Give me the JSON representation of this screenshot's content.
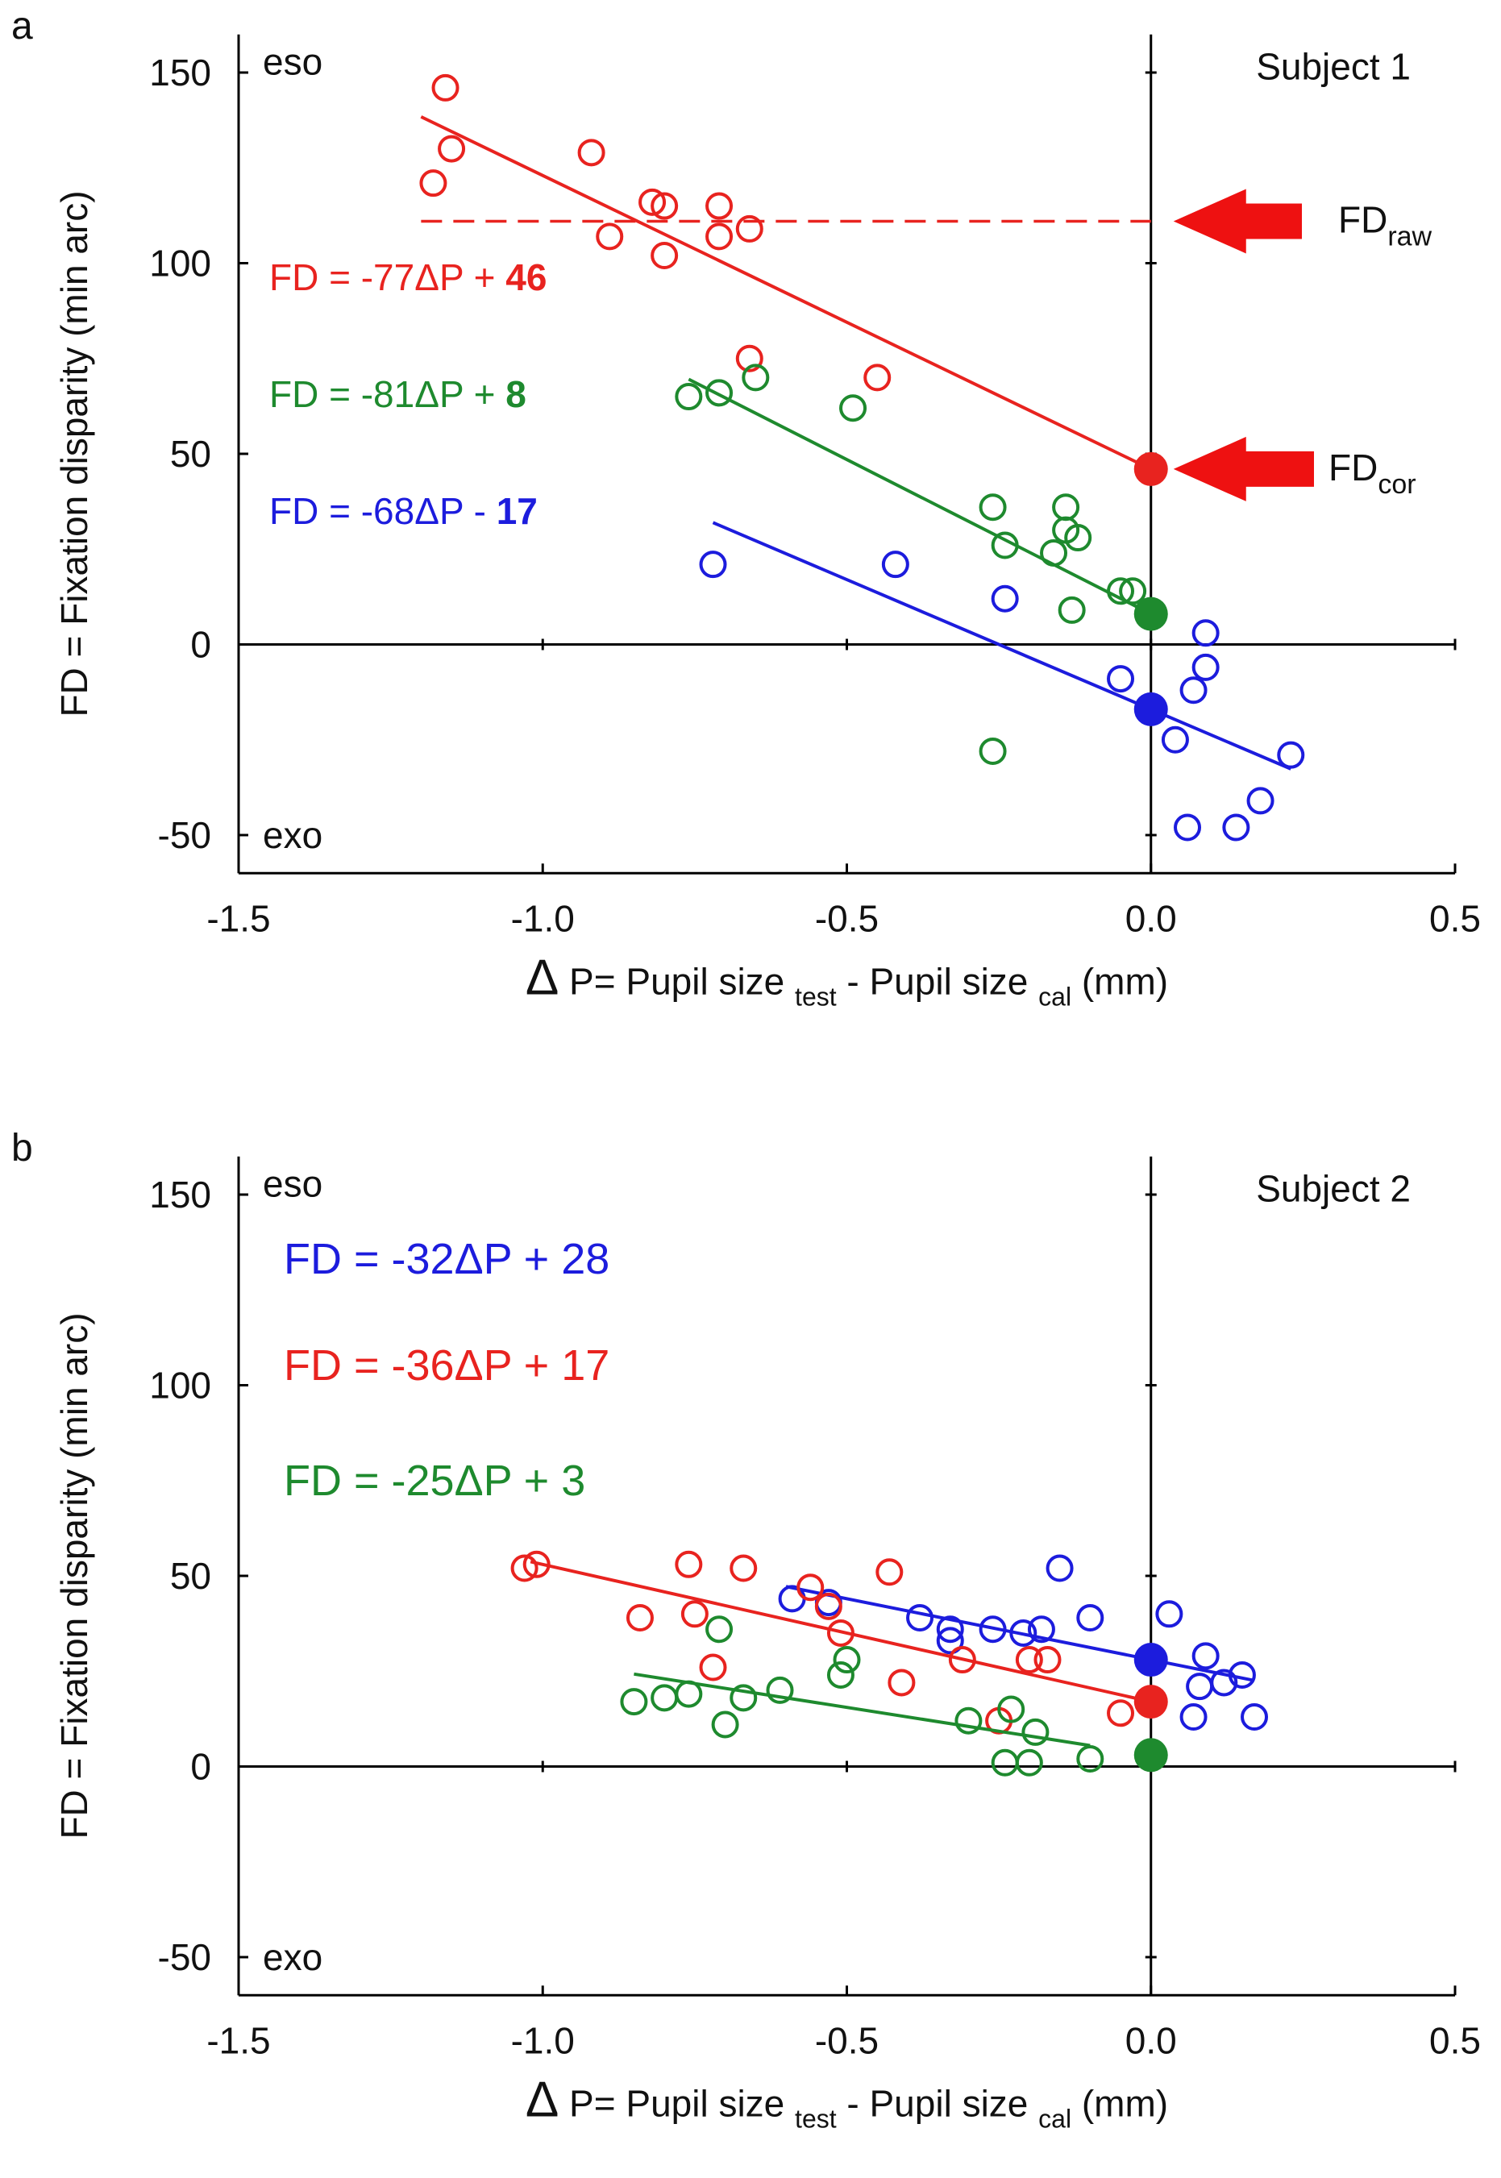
{
  "chart_data": [
    {
      "panel_label": "a",
      "type": "scatter",
      "title": "Subject 1",
      "xlabel": {
        "main": "Δ P= Pupil size ",
        "sub1": "test",
        "mid": " - Pupil size ",
        "sub2": "cal",
        "end": " (mm)"
      },
      "ylabel": "FD = Fixation disparity (min arc)",
      "xlim": [
        -1.5,
        0.5
      ],
      "ylim": [
        -60,
        160
      ],
      "xticks": [
        -1.5,
        -1.0,
        -0.5,
        0.0,
        0.5
      ],
      "xtick_labels": [
        "-1.5",
        "-1.0",
        "-0.5",
        "0.0",
        "0.5"
      ],
      "yticks": [
        -50,
        0,
        50,
        100,
        150
      ],
      "ytick_labels": [
        "-50",
        "0",
        "50",
        "100",
        "150"
      ],
      "corner_labels": {
        "top": "eso",
        "bottom": "exo"
      },
      "series": [
        {
          "name": "red",
          "color": "#e8231f",
          "equation": {
            "prefix": "FD = -77ΔP + ",
            "intercept": "46",
            "bold": true
          },
          "slope": -77,
          "intercept": 46,
          "fit_x": [
            -1.2,
            0.0
          ],
          "points": [
            [
              -1.16,
              146
            ],
            [
              -1.15,
              130
            ],
            [
              -1.18,
              121
            ],
            [
              -0.92,
              129
            ],
            [
              -0.89,
              107
            ],
            [
              -0.82,
              116
            ],
            [
              -0.8,
              115
            ],
            [
              -0.8,
              102
            ],
            [
              -0.71,
              115
            ],
            [
              -0.71,
              107
            ],
            [
              -0.66,
              109
            ],
            [
              -0.66,
              75
            ],
            [
              -0.45,
              70
            ]
          ],
          "intercept_marker": [
            0.0,
            46
          ]
        },
        {
          "name": "green",
          "color": "#1e8a2e",
          "equation": {
            "prefix": "FD = -81ΔP + ",
            "intercept": "8",
            "bold": true
          },
          "slope": -81,
          "intercept": 8,
          "fit_x": [
            -0.76,
            0.0
          ],
          "points": [
            [
              -0.76,
              65
            ],
            [
              -0.71,
              66
            ],
            [
              -0.65,
              70
            ],
            [
              -0.49,
              62
            ],
            [
              -0.26,
              36
            ],
            [
              -0.24,
              26
            ],
            [
              -0.16,
              24
            ],
            [
              -0.14,
              36
            ],
            [
              -0.14,
              30
            ],
            [
              -0.12,
              28
            ],
            [
              -0.13,
              9
            ],
            [
              -0.05,
              14
            ],
            [
              -0.03,
              14
            ],
            [
              -0.26,
              -28
            ]
          ],
          "intercept_marker": [
            0.0,
            8
          ]
        },
        {
          "name": "blue",
          "color": "#1c1cdd",
          "equation": {
            "prefix": "FD = -68ΔP - ",
            "intercept": "17",
            "bold": true
          },
          "slope": -68,
          "intercept": -17,
          "fit_x": [
            -0.72,
            0.23
          ],
          "points": [
            [
              -0.72,
              21
            ],
            [
              -0.42,
              21
            ],
            [
              -0.24,
              12
            ],
            [
              -0.05,
              -9
            ],
            [
              0.09,
              3
            ],
            [
              0.09,
              -6
            ],
            [
              0.07,
              -12
            ],
            [
              0.04,
              -25
            ],
            [
              0.23,
              -29
            ],
            [
              0.18,
              -41
            ],
            [
              0.14,
              -48
            ],
            [
              0.06,
              -48
            ]
          ],
          "intercept_marker": [
            0.0,
            -17
          ]
        }
      ],
      "reference_line": {
        "y": 111,
        "x_from": -1.2,
        "x_to": 0.0,
        "style": "dashed",
        "color": "#e8231f"
      },
      "annotations": [
        {
          "text": "FD",
          "sub": "raw",
          "points_to": [
            0.0,
            111
          ]
        },
        {
          "text": "FD",
          "sub": "cor",
          "points_to": [
            0.0,
            46
          ]
        }
      ]
    },
    {
      "panel_label": "b",
      "type": "scatter",
      "title": "Subject 2",
      "xlabel": {
        "main": "Δ P= Pupil size ",
        "sub1": "test",
        "mid": " - Pupil size ",
        "sub2": "cal",
        "end": " (mm)"
      },
      "ylabel": "FD = Fixation disparity (min arc)",
      "xlim": [
        -1.5,
        0.5
      ],
      "ylim": [
        -60,
        160
      ],
      "xticks": [
        -1.5,
        -1.0,
        -0.5,
        0.0,
        0.5
      ],
      "xtick_labels": [
        "-1.5",
        "-1.0",
        "-0.5",
        "0.0",
        "0.5"
      ],
      "yticks": [
        -50,
        0,
        50,
        100,
        150
      ],
      "ytick_labels": [
        "-50",
        "0",
        "50",
        "100",
        "150"
      ],
      "corner_labels": {
        "top": "eso",
        "bottom": "exo"
      },
      "series": [
        {
          "name": "blue",
          "color": "#1c1cdd",
          "equation": {
            "prefix": "FD = -32ΔP + ",
            "intercept": "28",
            "bold": false
          },
          "slope": -32,
          "intercept": 28,
          "fit_x": [
            -0.6,
            0.17
          ],
          "points": [
            [
              -0.59,
              44
            ],
            [
              -0.53,
              43
            ],
            [
              -0.38,
              39
            ],
            [
              -0.33,
              36
            ],
            [
              -0.33,
              33
            ],
            [
              -0.26,
              36
            ],
            [
              -0.21,
              35
            ],
            [
              -0.18,
              36
            ],
            [
              -0.15,
              52
            ],
            [
              -0.1,
              39
            ],
            [
              0.03,
              40
            ],
            [
              0.09,
              29
            ],
            [
              0.08,
              21
            ],
            [
              0.12,
              22
            ],
            [
              0.15,
              24
            ],
            [
              0.07,
              13
            ],
            [
              0.17,
              13
            ]
          ],
          "intercept_marker": [
            0.0,
            28
          ]
        },
        {
          "name": "red",
          "color": "#e8231f",
          "equation": {
            "prefix": "FD = -36ΔP + ",
            "intercept": "17",
            "bold": false
          },
          "slope": -36,
          "intercept": 17,
          "fit_x": [
            -1.02,
            0.0
          ],
          "points": [
            [
              -1.03,
              52
            ],
            [
              -1.01,
              53
            ],
            [
              -0.76,
              53
            ],
            [
              -0.67,
              52
            ],
            [
              -0.43,
              51
            ],
            [
              -0.56,
              47
            ],
            [
              -0.53,
              42
            ],
            [
              -0.75,
              40
            ],
            [
              -0.84,
              39
            ],
            [
              -0.51,
              35
            ],
            [
              -0.72,
              26
            ],
            [
              -0.31,
              28
            ],
            [
              -0.2,
              28
            ],
            [
              -0.17,
              28
            ],
            [
              -0.41,
              22
            ],
            [
              -0.25,
              12
            ],
            [
              -0.05,
              14
            ]
          ],
          "intercept_marker": [
            0.0,
            17
          ]
        },
        {
          "name": "green",
          "color": "#1e8a2e",
          "equation": {
            "prefix": "FD = -25ΔP + ",
            "intercept": "3",
            "bold": false
          },
          "slope": -25,
          "intercept": 3,
          "fit_x": [
            -0.85,
            -0.1
          ],
          "points": [
            [
              -0.71,
              36
            ],
            [
              -0.5,
              28
            ],
            [
              -0.51,
              24
            ],
            [
              -0.61,
              20
            ],
            [
              -0.67,
              18
            ],
            [
              -0.76,
              19
            ],
            [
              -0.8,
              18
            ],
            [
              -0.85,
              17
            ],
            [
              -0.7,
              11
            ],
            [
              -0.3,
              12
            ],
            [
              -0.23,
              15
            ],
            [
              -0.19,
              9
            ],
            [
              -0.24,
              1
            ],
            [
              -0.2,
              1
            ],
            [
              -0.1,
              2
            ]
          ],
          "intercept_marker": [
            0.0,
            3
          ]
        }
      ]
    }
  ]
}
